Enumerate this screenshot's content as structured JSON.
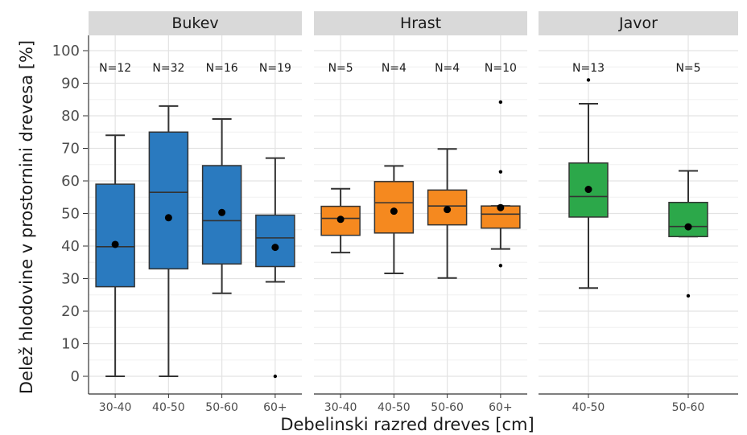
{
  "chart_data": {
    "type": "box",
    "xlabel": "Debelinski razred dreves [cm]",
    "ylabel": "Delež hlodovine v prostornini drevesa [%]",
    "ylim": [
      -5,
      105
    ],
    "yticks": [
      0,
      10,
      20,
      30,
      40,
      50,
      60,
      70,
      80,
      90,
      100
    ],
    "grid": true,
    "colors": {
      "Bukev": "#2a7abf",
      "Hrast": "#f5891f",
      "Javor": "#2ca84a"
    },
    "panels": [
      {
        "name": "Bukev",
        "boxes": [
          {
            "category": "30-40",
            "n_label": "N=12",
            "min": 0,
            "q1": 27.5,
            "median": 39.8,
            "q3": 59,
            "max": 74,
            "mean": 40.5,
            "outliers": []
          },
          {
            "category": "40-50",
            "n_label": "N=32",
            "min": 0,
            "q1": 33,
            "median": 56.5,
            "q3": 75,
            "max": 83,
            "mean": 48.7,
            "outliers": []
          },
          {
            "category": "50-60",
            "n_label": "N=16",
            "min": 25.5,
            "q1": 34.5,
            "median": 47.8,
            "q3": 64.7,
            "max": 79,
            "mean": 50.3,
            "outliers": []
          },
          {
            "category": "60+",
            "n_label": "N=19",
            "min": 29,
            "q1": 33.7,
            "median": 42.5,
            "q3": 49.5,
            "max": 67,
            "mean": 39.6,
            "outliers": [
              0
            ]
          }
        ]
      },
      {
        "name": "Hrast",
        "boxes": [
          {
            "category": "30-40",
            "n_label": "N=5",
            "min": 38,
            "q1": 43.3,
            "median": 48.5,
            "q3": 52.2,
            "max": 57.6,
            "mean": 48.2,
            "outliers": []
          },
          {
            "category": "40-50",
            "n_label": "N=4",
            "min": 31.6,
            "q1": 44,
            "median": 53.3,
            "q3": 59.8,
            "max": 64.6,
            "mean": 50.7,
            "outliers": []
          },
          {
            "category": "50-60",
            "n_label": "N=4",
            "min": 30.2,
            "q1": 46.5,
            "median": 52.3,
            "q3": 57.2,
            "max": 69.8,
            "mean": 51.2,
            "outliers": []
          },
          {
            "category": "60+",
            "n_label": "N=10",
            "min": 39.1,
            "q1": 45.5,
            "median": 49.8,
            "q3": 52.3,
            "max": 52.3,
            "mean": 51.8,
            "outliers": [
              84.2,
              62.8,
              34
            ]
          }
        ]
      },
      {
        "name": "Javor",
        "boxes": [
          {
            "category": "40-50",
            "n_label": "N=13",
            "min": 27.1,
            "q1": 48.9,
            "median": 55.2,
            "q3": 65.5,
            "max": 83.7,
            "mean": 57.4,
            "outliers": [
              91
            ]
          },
          {
            "category": "50-60",
            "n_label": "N=5",
            "min": 42.9,
            "q1": 42.9,
            "median": 46,
            "q3": 53.4,
            "max": 63.1,
            "mean": 45.9,
            "outliers": [
              24.7
            ]
          }
        ]
      }
    ]
  }
}
